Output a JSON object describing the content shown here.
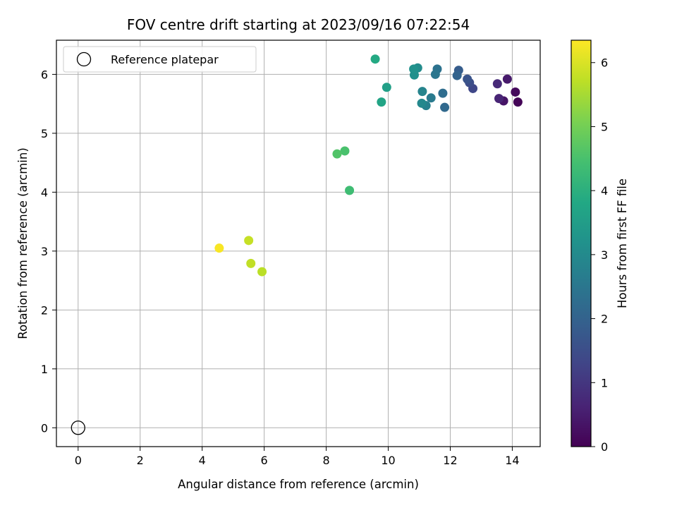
{
  "chart_data": {
    "type": "scatter",
    "title": "FOV centre drift starting at 2023/09/16 07:22:54",
    "xlabel": "Angular distance from reference (arcmin)",
    "ylabel": "Rotation from reference (arcmin)",
    "xlim": [
      -0.7,
      14.9
    ],
    "ylim": [
      -0.32,
      6.58
    ],
    "xticks": [
      "0",
      "2",
      "4",
      "6",
      "8",
      "10",
      "12",
      "14"
    ],
    "yticks": [
      "0",
      "1",
      "2",
      "3",
      "4",
      "5",
      "6"
    ],
    "grid": true,
    "legend": {
      "placement": "upper-left",
      "entries": [
        "Reference platepar"
      ]
    },
    "reference_point": {
      "x": 0,
      "y": 0,
      "label": "Reference platepar"
    },
    "colorbar": {
      "label": "Hours from first FF file",
      "colormap": "viridis",
      "range": [
        0,
        6.35
      ],
      "ticks": [
        "0",
        "1",
        "2",
        "3",
        "4",
        "5",
        "6"
      ]
    },
    "points": [
      {
        "x": 14.18,
        "y": 5.53,
        "hours": 0.05
      },
      {
        "x": 14.1,
        "y": 5.7,
        "hours": 0.15
      },
      {
        "x": 13.72,
        "y": 5.55,
        "hours": 0.35
      },
      {
        "x": 13.84,
        "y": 5.92,
        "hours": 0.45
      },
      {
        "x": 13.57,
        "y": 5.59,
        "hours": 0.65
      },
      {
        "x": 13.52,
        "y": 5.84,
        "hours": 0.75
      },
      {
        "x": 12.73,
        "y": 5.76,
        "hours": 1.35
      },
      {
        "x": 12.62,
        "y": 5.86,
        "hours": 1.5
      },
      {
        "x": 12.55,
        "y": 5.92,
        "hours": 1.65
      },
      {
        "x": 12.27,
        "y": 6.07,
        "hours": 1.85
      },
      {
        "x": 12.22,
        "y": 5.98,
        "hours": 2.0
      },
      {
        "x": 11.82,
        "y": 5.44,
        "hours": 2.15
      },
      {
        "x": 11.76,
        "y": 5.68,
        "hours": 2.25
      },
      {
        "x": 11.58,
        "y": 6.09,
        "hours": 2.4
      },
      {
        "x": 11.52,
        "y": 6.0,
        "hours": 2.5
      },
      {
        "x": 11.38,
        "y": 5.6,
        "hours": 2.6
      },
      {
        "x": 11.22,
        "y": 5.47,
        "hours": 2.75
      },
      {
        "x": 11.1,
        "y": 5.71,
        "hours": 2.85
      },
      {
        "x": 11.08,
        "y": 5.51,
        "hours": 2.95
      },
      {
        "x": 10.95,
        "y": 6.11,
        "hours": 3.05
      },
      {
        "x": 10.84,
        "y": 5.99,
        "hours": 3.15
      },
      {
        "x": 10.82,
        "y": 6.09,
        "hours": 3.2
      },
      {
        "x": 9.95,
        "y": 5.78,
        "hours": 3.55
      },
      {
        "x": 9.78,
        "y": 5.53,
        "hours": 3.7
      },
      {
        "x": 9.58,
        "y": 6.26,
        "hours": 3.85
      },
      {
        "x": 8.75,
        "y": 4.03,
        "hours": 4.35
      },
      {
        "x": 8.6,
        "y": 4.7,
        "hours": 4.5
      },
      {
        "x": 8.35,
        "y": 4.65,
        "hours": 4.6
      },
      {
        "x": 5.93,
        "y": 2.65,
        "hours": 5.7
      },
      {
        "x": 5.57,
        "y": 2.79,
        "hours": 5.75
      },
      {
        "x": 5.5,
        "y": 3.18,
        "hours": 5.8
      },
      {
        "x": 4.55,
        "y": 3.05,
        "hours": 6.3
      }
    ]
  }
}
